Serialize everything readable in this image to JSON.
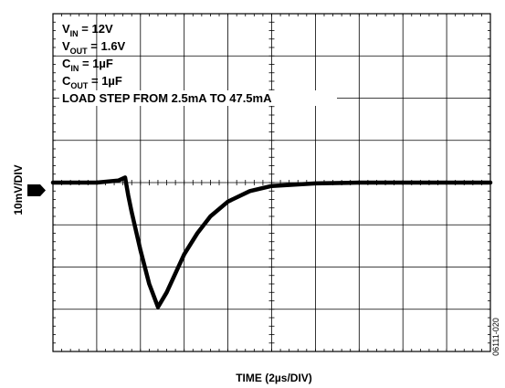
{
  "chart_data": {
    "type": "line",
    "title": "",
    "xlabel": "TIME (2µs/DIV)",
    "ylabel": "10mV/DIV",
    "x_divisions": 10,
    "y_divisions": 8,
    "xlim": [
      0,
      10
    ],
    "ylim": [
      -4,
      4
    ],
    "channel_marker": "1",
    "annotations": [
      {
        "main": "V",
        "sub": "IN",
        "rest": " = 12V"
      },
      {
        "main": "V",
        "sub": "OUT",
        "rest": " = 1.6V"
      },
      {
        "main": "C",
        "sub": "IN",
        "rest": " = 1µF"
      },
      {
        "main": "C",
        "sub": "OUT",
        "rest": " = 1µF"
      },
      {
        "main": "LOAD STEP FROM 2.5mA TO 47.5mA",
        "sub": "",
        "rest": ""
      }
    ],
    "figure_id": "06111-020",
    "series": [
      {
        "name": "",
        "x": [
          0,
          0.5,
          1.0,
          1.5,
          1.65,
          1.72,
          1.8,
          2.0,
          2.2,
          2.4,
          2.6,
          2.8,
          3.0,
          3.3,
          3.6,
          4.0,
          4.5,
          5.0,
          6.0,
          7.0,
          8.0,
          9.0,
          10.0
        ],
        "values": [
          0.0,
          0.0,
          0.0,
          0.05,
          0.12,
          -0.3,
          -0.7,
          -1.6,
          -2.4,
          -2.95,
          -2.6,
          -2.15,
          -1.7,
          -1.2,
          -0.8,
          -0.45,
          -0.2,
          -0.08,
          -0.02,
          0.0,
          0.0,
          0.0,
          0.0
        ]
      }
    ]
  }
}
